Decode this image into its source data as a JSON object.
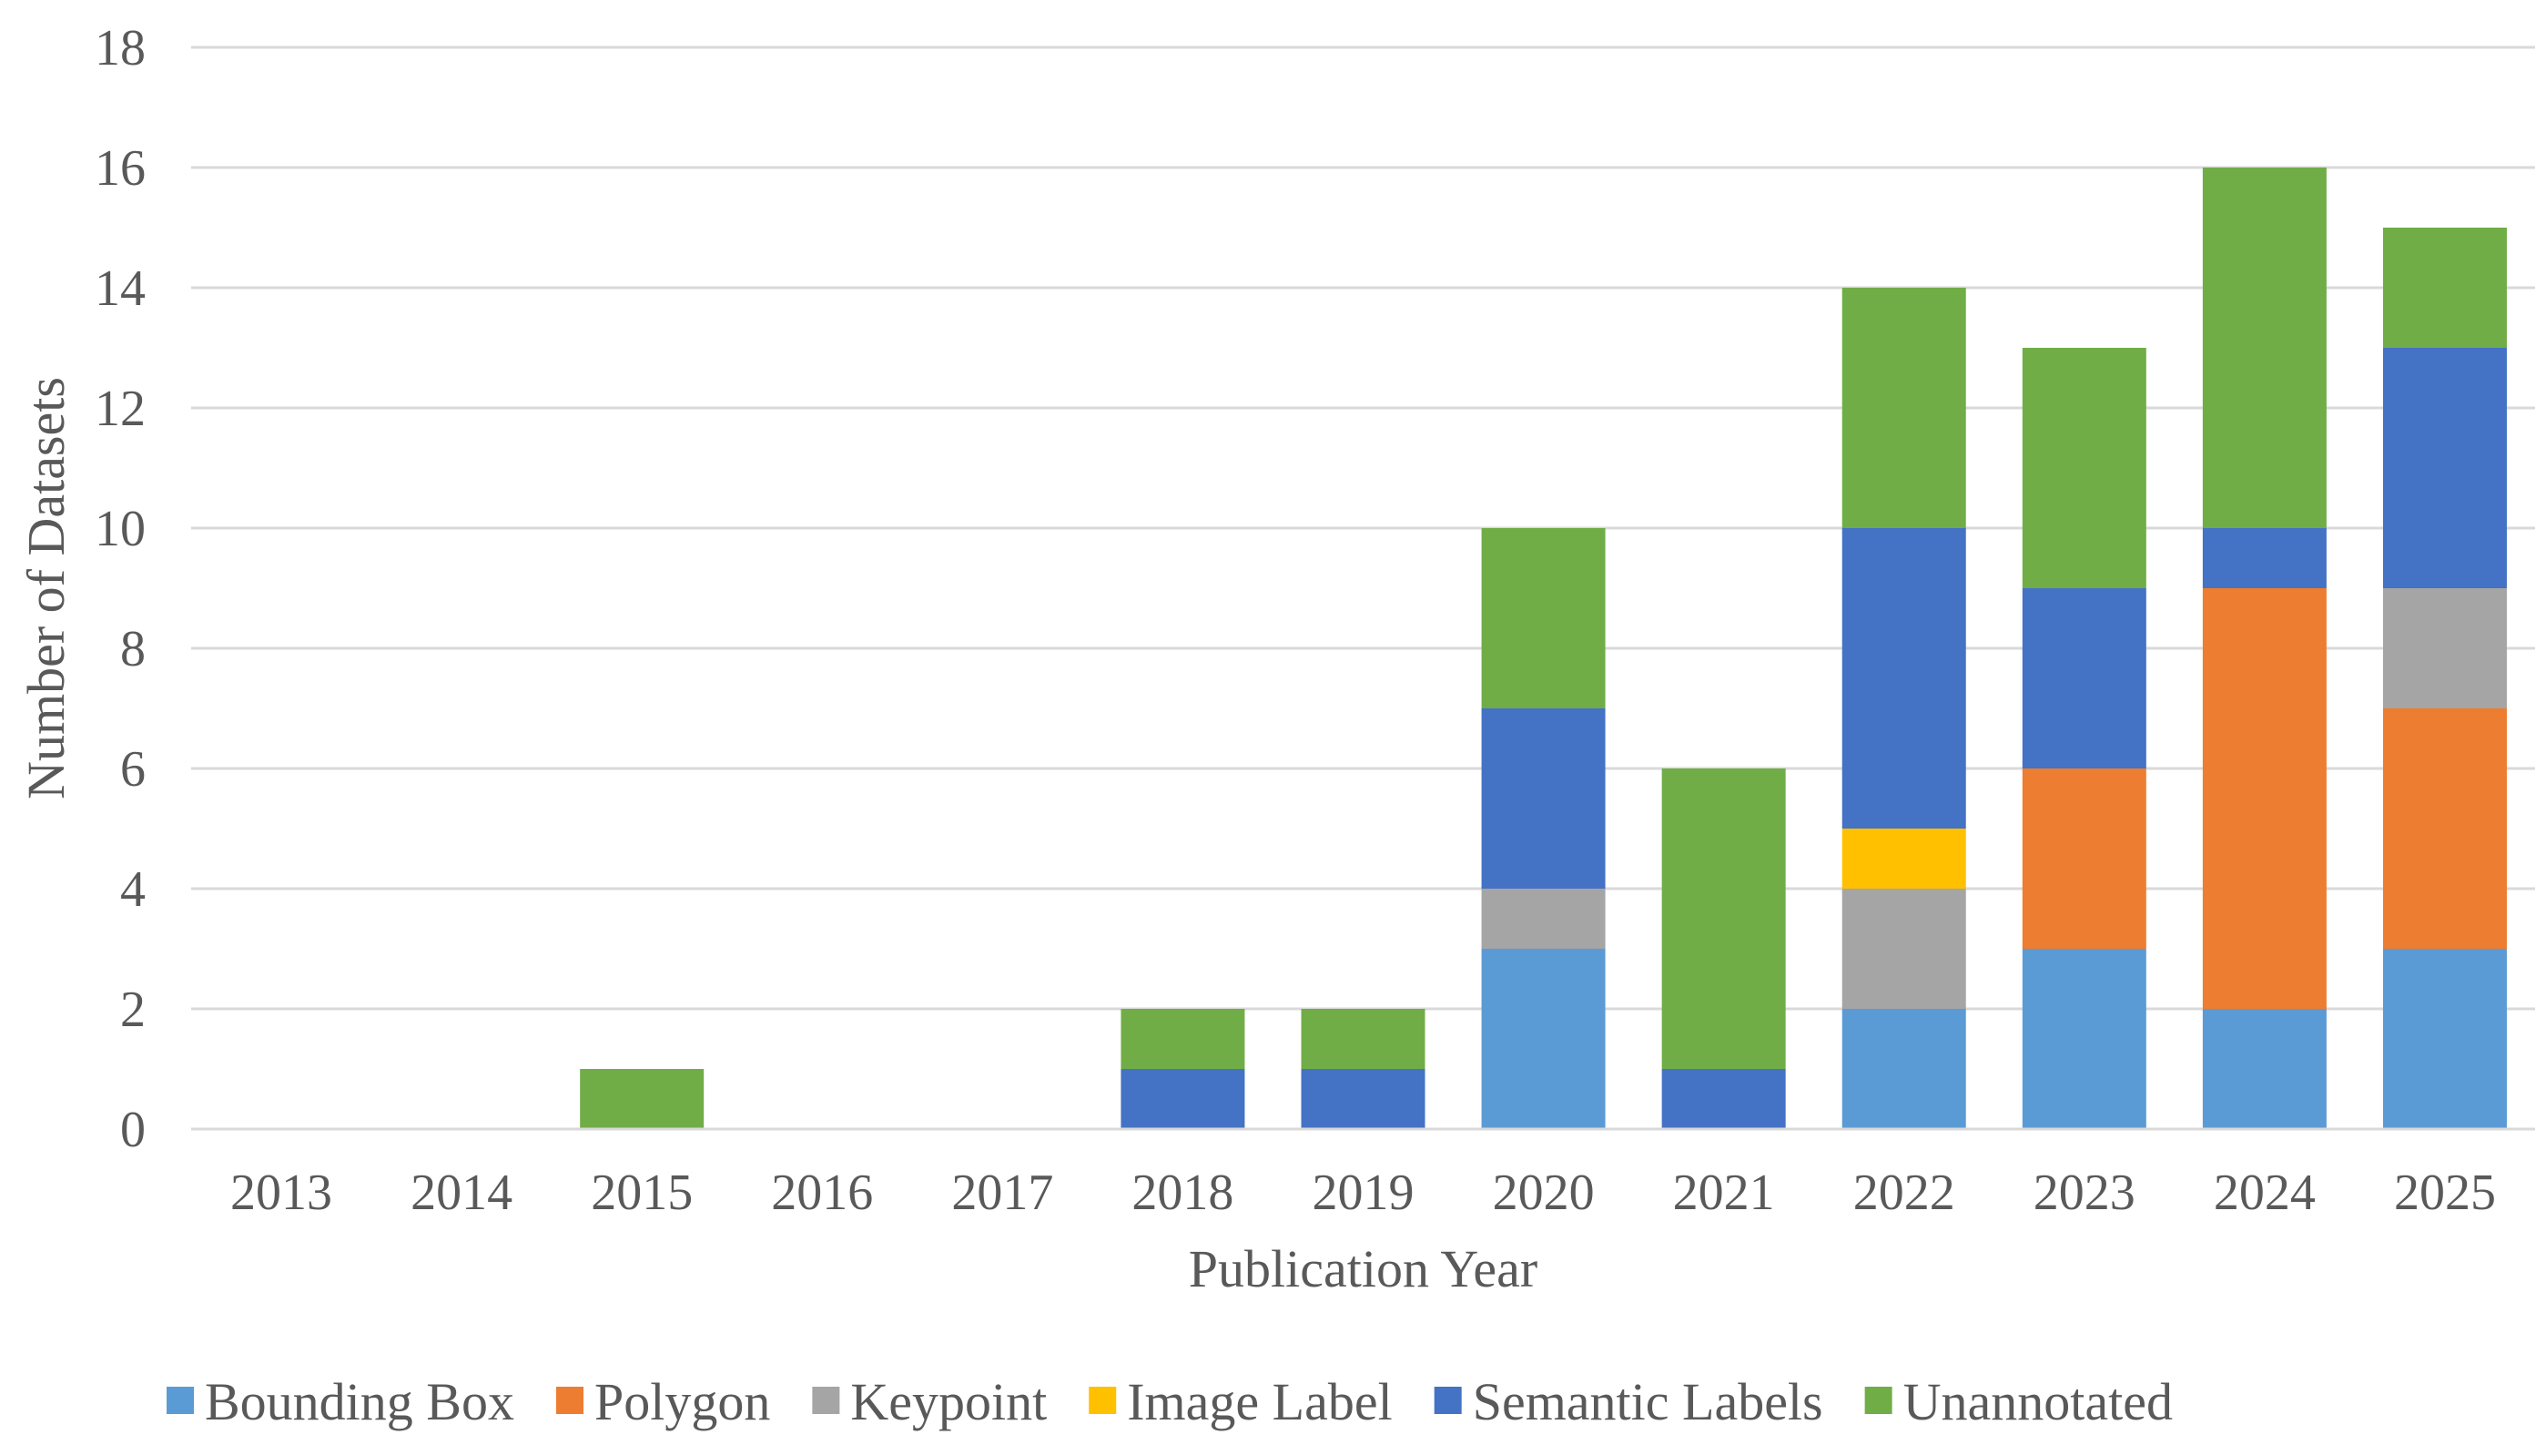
{
  "chart_data": {
    "type": "bar",
    "stacked": true,
    "title": "",
    "xlabel": "Publication Year",
    "ylabel": "Number of Datasets",
    "ylim": [
      0,
      18
    ],
    "ytick_step": 2,
    "yticks": [
      "0",
      "2",
      "4",
      "6",
      "8",
      "10",
      "12",
      "14",
      "16",
      "18"
    ],
    "grid": true,
    "legend_position": "bottom",
    "categories": [
      "2013",
      "2014",
      "2015",
      "2016",
      "2017",
      "2018",
      "2019",
      "2020",
      "2021",
      "2022",
      "2023",
      "2024",
      "2025"
    ],
    "series": [
      {
        "name": "Bounding Box",
        "color": "#5B9BD5",
        "values": [
          0,
          0,
          0,
          0,
          0,
          0,
          0,
          3,
          0,
          2,
          3,
          2,
          3
        ]
      },
      {
        "name": "Polygon",
        "color": "#ED7D31",
        "values": [
          0,
          0,
          0,
          0,
          0,
          0,
          0,
          0,
          0,
          0,
          3,
          7,
          4
        ]
      },
      {
        "name": "Keypoint",
        "color": "#A5A5A5",
        "values": [
          0,
          0,
          0,
          0,
          0,
          0,
          0,
          1,
          0,
          2,
          0,
          0,
          2
        ]
      },
      {
        "name": "Image Label",
        "color": "#FFC000",
        "values": [
          0,
          0,
          0,
          0,
          0,
          0,
          0,
          0,
          0,
          1,
          0,
          0,
          0
        ]
      },
      {
        "name": "Semantic Labels",
        "color": "#4472C4",
        "values": [
          0,
          0,
          0,
          0,
          0,
          1,
          1,
          3,
          1,
          5,
          3,
          1,
          4
        ]
      },
      {
        "name": "Unannotated",
        "color": "#70AD47",
        "values": [
          0,
          0,
          1,
          0,
          0,
          1,
          1,
          3,
          5,
          4,
          4,
          6,
          2
        ]
      }
    ]
  }
}
